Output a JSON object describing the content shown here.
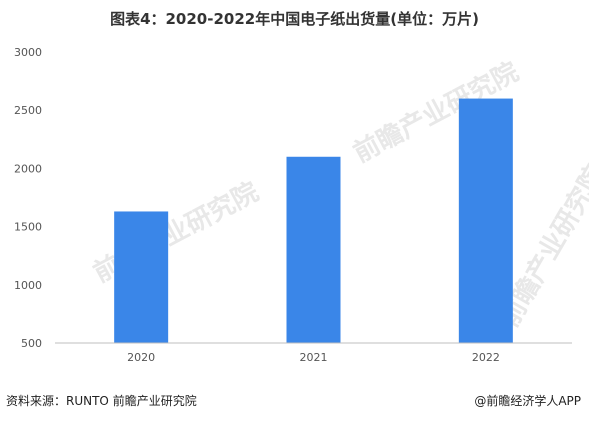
{
  "chart_data": {
    "type": "bar",
    "title": "图表4：2020-2022年中国电子纸出货量(单位：万片)",
    "categories": [
      "2020",
      "2021",
      "2022"
    ],
    "values": [
      1630,
      2100,
      2600
    ],
    "ylim": [
      500,
      3000
    ],
    "yticks": [
      "500",
      "1000",
      "1500",
      "2000",
      "2500",
      "3000"
    ],
    "xlabel": "",
    "ylabel": "",
    "grid": false,
    "bar_color": "#3a86e8",
    "axis_color": "#bfbfbf"
  },
  "footer": {
    "source": "资料来源：RUNTO 前瞻产业研究院",
    "credit": "@前瞻经济学人APP"
  },
  "watermark": {
    "text": "前瞻产业研究院",
    "color": "#e8e8e8"
  }
}
